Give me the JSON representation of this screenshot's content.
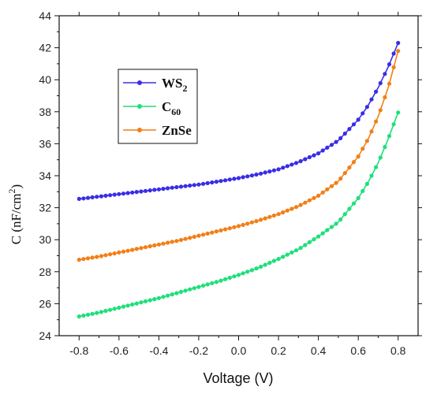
{
  "chart_data": {
    "type": "line",
    "xlabel": "Voltage (V)",
    "ylabel": {
      "main": "C (nF/cm",
      "sup": "2",
      "end": ")"
    },
    "xlim": [
      -0.9,
      0.9
    ],
    "ylim": [
      24,
      44
    ],
    "xticks": [
      "-0.8",
      "-0.6",
      "-0.4",
      "-0.2",
      "0.0",
      "0.2",
      "0.4",
      "0.6",
      "0.8"
    ],
    "xtick_values": [
      -0.8,
      -0.6,
      -0.4,
      -0.2,
      0.0,
      0.2,
      0.4,
      0.6,
      0.8
    ],
    "yticks": [
      "24",
      "26",
      "28",
      "30",
      "32",
      "34",
      "36",
      "38",
      "40",
      "42",
      "44"
    ],
    "ytick_values": [
      24,
      26,
      28,
      30,
      32,
      34,
      36,
      38,
      40,
      42,
      44
    ],
    "grid": false,
    "legend_position": "upper-left",
    "legend": [
      {
        "label": "WS",
        "sub": "2",
        "color": "#3a2ee6"
      },
      {
        "label": "C",
        "sub": "60",
        "color": "#1ee07a"
      },
      {
        "label": "ZnSe",
        "sub": "",
        "color": "#f27f17"
      }
    ],
    "series": [
      {
        "name": "WS2",
        "color": "#3a2ee6",
        "x": [
          -0.8,
          -0.7,
          -0.6,
          -0.5,
          -0.4,
          -0.3,
          -0.2,
          -0.1,
          0.0,
          0.1,
          0.2,
          0.3,
          0.4,
          0.5,
          0.6,
          0.65,
          0.7,
          0.75,
          0.8
        ],
        "y": [
          32.55,
          32.7,
          32.85,
          33.0,
          33.15,
          33.3,
          33.45,
          33.65,
          33.85,
          34.1,
          34.4,
          34.85,
          35.4,
          36.2,
          37.5,
          38.4,
          39.5,
          40.8,
          42.3
        ]
      },
      {
        "name": "C60",
        "color": "#1ee07a",
        "x": [
          -0.8,
          -0.7,
          -0.6,
          -0.5,
          -0.4,
          -0.3,
          -0.2,
          -0.1,
          0.0,
          0.1,
          0.2,
          0.3,
          0.4,
          0.5,
          0.6,
          0.65,
          0.7,
          0.75,
          0.8
        ],
        "y": [
          25.2,
          25.45,
          25.75,
          26.05,
          26.35,
          26.7,
          27.05,
          27.4,
          27.8,
          28.25,
          28.8,
          29.4,
          30.2,
          31.1,
          32.6,
          33.6,
          34.8,
          36.3,
          37.95
        ]
      },
      {
        "name": "ZnSe",
        "color": "#f27f17",
        "x": [
          -0.8,
          -0.7,
          -0.6,
          -0.5,
          -0.4,
          -0.3,
          -0.2,
          -0.1,
          0.0,
          0.1,
          0.2,
          0.3,
          0.4,
          0.5,
          0.6,
          0.65,
          0.7,
          0.75,
          0.8
        ],
        "y": [
          28.75,
          28.95,
          29.2,
          29.45,
          29.7,
          29.95,
          30.25,
          30.55,
          30.85,
          31.2,
          31.6,
          32.1,
          32.75,
          33.65,
          35.2,
          36.3,
          37.7,
          39.5,
          41.8
        ]
      }
    ]
  }
}
